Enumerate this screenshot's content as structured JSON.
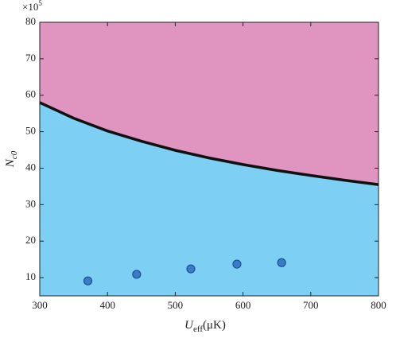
{
  "chart_data": {
    "type": "line",
    "xlabel": "U",
    "xlabel_sub": "eff",
    "xlabel_unit": "(μK)",
    "ylabel": "N",
    "ylabel_sub": "c0",
    "y_multiplier": "×10",
    "y_multiplier_exp": "5",
    "xlim": [
      300,
      800
    ],
    "xticks": [
      300,
      400,
      500,
      600,
      700,
      800
    ],
    "ylim": [
      5,
      80
    ],
    "yticks": [
      10,
      20,
      30,
      40,
      50,
      60,
      70,
      80
    ],
    "fill_above": "#e094c0",
    "fill_below": "#7dd0f4",
    "series": [
      {
        "type": "line",
        "color": "#111111",
        "x": [
          300,
          350,
          400,
          450,
          500,
          550,
          600,
          650,
          700,
          750,
          800
        ],
        "values": [
          58,
          53.7,
          50.2,
          47.4,
          44.9,
          42.8,
          41.0,
          39.4,
          38.0,
          36.7,
          35.5
        ]
      },
      {
        "type": "scatter",
        "color": "#3a7cc8",
        "x": [
          371,
          443,
          523,
          591,
          657
        ],
        "values": [
          9.1,
          10.9,
          12.4,
          13.7,
          14.1
        ]
      }
    ]
  }
}
